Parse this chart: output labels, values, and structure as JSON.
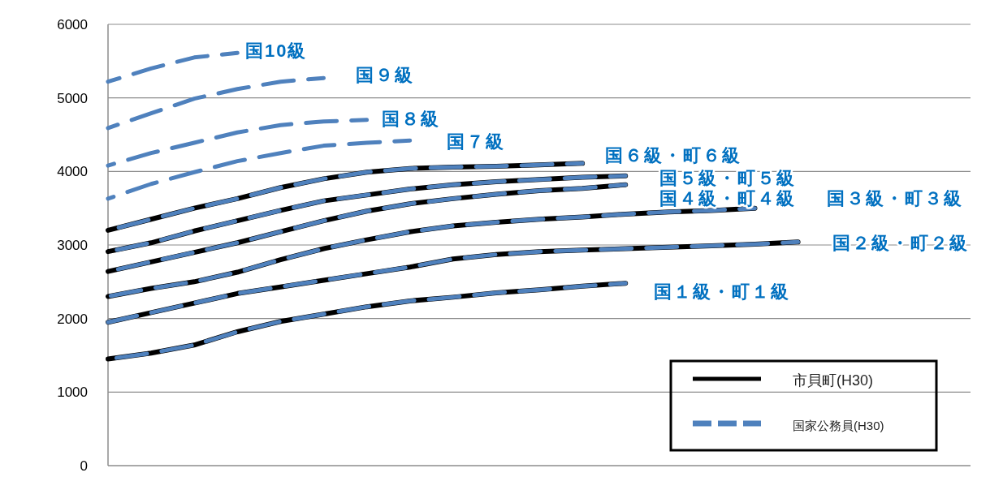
{
  "chart_data": {
    "type": "line",
    "categories": [
      null,
      null,
      null,
      null,
      null,
      null,
      null,
      null,
      null,
      null,
      null,
      null,
      null,
      null,
      null,
      null,
      null,
      null,
      null,
      null,
      null
    ],
    "ylim": [
      0,
      6000
    ],
    "yticks": [
      0,
      1000,
      2000,
      3000,
      4000,
      5000,
      6000
    ],
    "grid": "y",
    "tick_labels": "y",
    "legend": "bottom right",
    "marker": "none",
    "series": [
      {
        "name": "市貝町(H30)",
        "color": "#000000",
        "line_style": "solid",
        "values": [
          1450,
          1530,
          1640,
          1820,
          1960,
          2060,
          2160,
          2240,
          2290,
          2350,
          2390,
          2440,
          2480,
          null,
          null,
          null,
          null,
          null,
          null,
          null,
          null
        ]
      },
      {
        "color": "#000000",
        "line_style": "solid",
        "values": [
          1950,
          2080,
          2210,
          2340,
          2430,
          2520,
          2610,
          2700,
          2810,
          2870,
          2910,
          2930,
          2950,
          2970,
          2990,
          3010,
          3040,
          null,
          null,
          null,
          null
        ]
      },
      {
        "color": "#000000",
        "line_style": "solid",
        "values": [
          2300,
          2410,
          2500,
          2630,
          2800,
          2950,
          3070,
          3180,
          3260,
          3310,
          3350,
          3380,
          3420,
          3450,
          3470,
          3500,
          null,
          null,
          null,
          null,
          null
        ]
      },
      {
        "color": "#000000",
        "line_style": "solid",
        "values": [
          2640,
          2770,
          2900,
          3030,
          3180,
          3330,
          3460,
          3560,
          3630,
          3690,
          3740,
          3770,
          3820,
          null,
          null,
          null,
          null,
          null,
          null,
          null,
          null
        ]
      },
      {
        "color": "#000000",
        "line_style": "solid",
        "values": [
          2910,
          3030,
          3190,
          3330,
          3470,
          3600,
          3680,
          3760,
          3820,
          3860,
          3890,
          3920,
          3940,
          null,
          null,
          null,
          null,
          null,
          null,
          null,
          null
        ]
      },
      {
        "color": "#000000",
        "line_style": "solid",
        "values": [
          3200,
          3350,
          3500,
          3630,
          3780,
          3900,
          3990,
          4040,
          4060,
          4070,
          4090,
          4110,
          null,
          null,
          null,
          null,
          null,
          null,
          null,
          null,
          null
        ]
      },
      {
        "name": "国家公務員(H30)",
        "color": "#4f81bd",
        "line_style": "dashed",
        "values": [
          1450,
          1530,
          1640,
          1820,
          1960,
          2060,
          2160,
          2240,
          2290,
          2350,
          2390,
          2440,
          2480,
          null,
          null,
          null,
          null,
          null,
          null,
          null,
          null
        ]
      },
      {
        "color": "#4f81bd",
        "line_style": "dashed",
        "values": [
          1950,
          2080,
          2210,
          2340,
          2430,
          2520,
          2610,
          2700,
          2810,
          2870,
          2910,
          2930,
          2950,
          2970,
          2990,
          3010,
          3040,
          null,
          null,
          null,
          null
        ]
      },
      {
        "color": "#4f81bd",
        "line_style": "dashed",
        "values": [
          2300,
          2410,
          2500,
          2630,
          2800,
          2950,
          3070,
          3180,
          3260,
          3310,
          3350,
          3380,
          3420,
          3450,
          3470,
          3500,
          null,
          null,
          null,
          null,
          null
        ]
      },
      {
        "color": "#4f81bd",
        "line_style": "dashed",
        "values": [
          2640,
          2770,
          2900,
          3030,
          3180,
          3330,
          3460,
          3560,
          3630,
          3690,
          3740,
          3770,
          3820,
          null,
          null,
          null,
          null,
          null,
          null,
          null,
          null
        ]
      },
      {
        "color": "#4f81bd",
        "line_style": "dashed",
        "values": [
          2910,
          3030,
          3190,
          3330,
          3470,
          3600,
          3680,
          3760,
          3820,
          3860,
          3890,
          3920,
          3940,
          null,
          null,
          null,
          null,
          null,
          null,
          null,
          null
        ]
      },
      {
        "color": "#4f81bd",
        "line_style": "dashed",
        "values": [
          3200,
          3350,
          3500,
          3630,
          3780,
          3900,
          3990,
          4040,
          4060,
          4070,
          4090,
          4110,
          null,
          null,
          null,
          null,
          null,
          null,
          null,
          null,
          null
        ]
      },
      {
        "color": "#4f81bd",
        "line_style": "dashed",
        "values": [
          3630,
          3830,
          3990,
          4140,
          4250,
          4350,
          4390,
          4420,
          null,
          null,
          null,
          null,
          null,
          null,
          null,
          null,
          null,
          null,
          null,
          null,
          null
        ]
      },
      {
        "color": "#4f81bd",
        "line_style": "dashed",
        "values": [
          4080,
          4250,
          4390,
          4530,
          4630,
          4680,
          4700,
          null,
          null,
          null,
          null,
          null,
          null,
          null,
          null,
          null,
          null,
          null,
          null,
          null,
          null
        ]
      },
      {
        "color": "#4f81bd",
        "line_style": "dashed",
        "values": [
          4590,
          4790,
          4990,
          5120,
          5220,
          5270,
          null,
          null,
          null,
          null,
          null,
          null,
          null,
          null,
          null,
          null,
          null,
          null,
          null,
          null,
          null
        ]
      },
      {
        "color": "#4f81bd",
        "line_style": "dashed",
        "values": [
          5220,
          5400,
          5550,
          5610,
          null,
          null,
          null,
          null,
          null,
          null,
          null,
          null,
          null,
          null,
          null,
          null,
          null,
          null,
          null,
          null,
          null
        ]
      }
    ],
    "annotations": [
      "国10級",
      "国９級",
      "国８級",
      "国７級",
      "国６級・町６級",
      "国５級・町５級",
      "国４級・町４級",
      "国３級・町３級",
      "国２級・町２級",
      "国１級・町１級"
    ]
  }
}
